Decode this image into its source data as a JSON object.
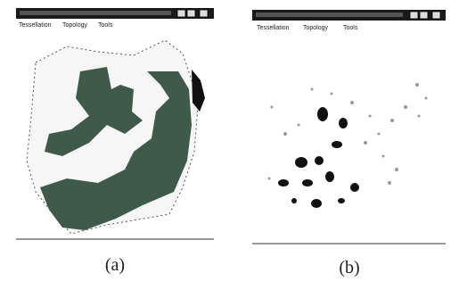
{
  "panels": [
    {
      "menu": [
        "Tessellation",
        "Topology",
        "Tools"
      ],
      "caption": "(a)"
    },
    {
      "menu": [
        "Tessellation",
        "Topology",
        "Tools"
      ],
      "caption": "(b)"
    }
  ]
}
